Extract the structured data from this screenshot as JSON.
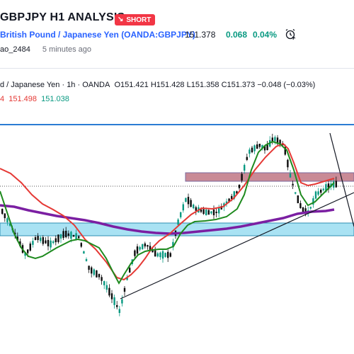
{
  "header": {
    "title": "GBPJPY H1 ANALYSIS",
    "badge": "SHORT",
    "symbol_name": "British Pound / Japanese Yen",
    "symbol_code": "(OANDA:GBPJPY)",
    "price": "151.378",
    "change": "0.068",
    "change_pct": "0.04%",
    "author": "ao_2484",
    "time": "5 minutes ago"
  },
  "legend": {
    "name": "d / Japanese Yen · 1h · OANDA",
    "open": "O151.421",
    "high": "H151.428",
    "low": "L151.358",
    "close": "C151.373",
    "chg": "−0.048 (−0.03%)"
  },
  "ma": {
    "v1": "4",
    "v2": "151.498",
    "v3": "151.038"
  },
  "colors": {
    "up": "#089981",
    "down": "#0c0c0c",
    "ma_fast": "#e53935",
    "ma_mid": "#1e8a1e",
    "ma_slow": "#7b1fa2",
    "resistance_zone": "#c98a96",
    "support_zone": "#a9e2f3",
    "hline": "#2b7cd3"
  },
  "chart_data": {
    "type": "candlestick",
    "series": [
      {
        "name": "Price",
        "values": []
      }
    ]
  }
}
